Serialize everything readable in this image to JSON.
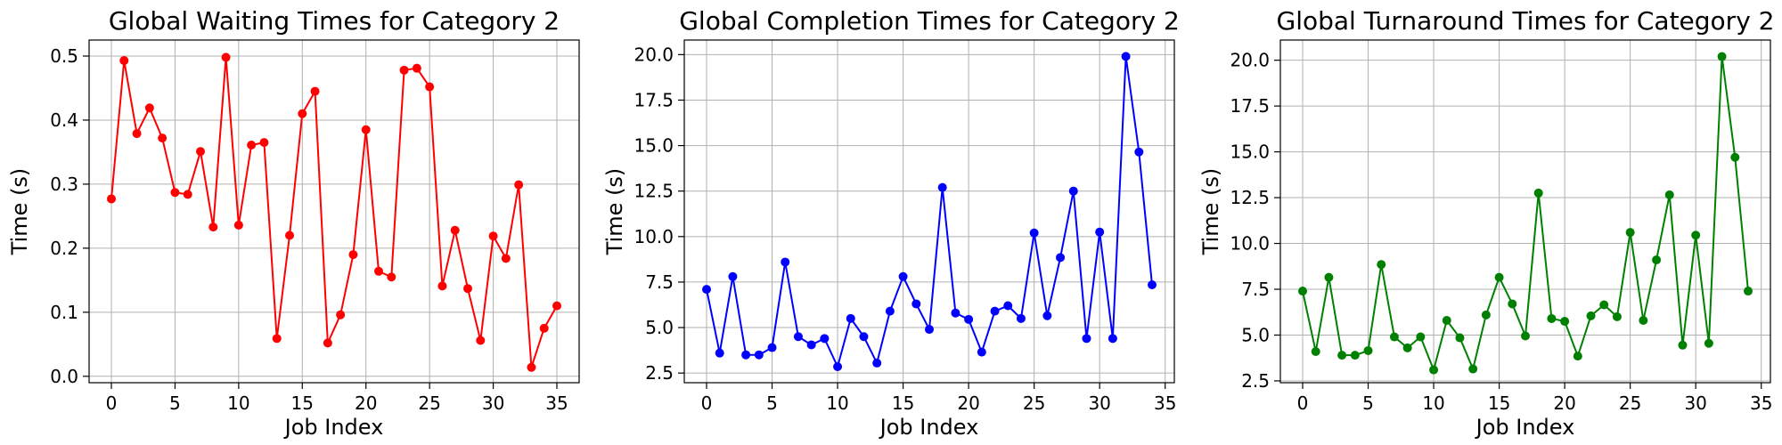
{
  "chart_data": [
    {
      "type": "line",
      "title": "Global Waiting Times for Category 2",
      "xlabel": "Job Index",
      "ylabel": "Time (s)",
      "color": "#ff0000",
      "grid": true,
      "xlim": [
        -1.75,
        36.75
      ],
      "ylim": [
        -0.01,
        0.525
      ],
      "xticks": [
        0,
        5,
        10,
        15,
        20,
        25,
        30,
        35
      ],
      "xtick_labels": [
        "0",
        "5",
        "10",
        "15",
        "20",
        "25",
        "30",
        "35"
      ],
      "yticks": [
        0.0,
        0.1,
        0.2,
        0.3,
        0.4,
        0.5
      ],
      "ytick_labels": [
        "0.0",
        "0.1",
        "0.2",
        "0.3",
        "0.4",
        "0.5"
      ],
      "series": [
        {
          "x": [
            0,
            1,
            2,
            3,
            4,
            5,
            6,
            7,
            8,
            9,
            10,
            11,
            12,
            13,
            14,
            15,
            16,
            17,
            18,
            19,
            20,
            21,
            22,
            23,
            24,
            25,
            26,
            27,
            28,
            29,
            30,
            31,
            32,
            33,
            34,
            35
          ],
          "values": [
            0.277,
            0.493,
            0.379,
            0.419,
            0.372,
            0.287,
            0.284,
            0.351,
            0.233,
            0.498,
            0.236,
            0.361,
            0.365,
            0.059,
            0.22,
            0.41,
            0.445,
            0.052,
            0.096,
            0.19,
            0.385,
            0.164,
            0.155,
            0.478,
            0.481,
            0.452,
            0.141,
            0.228,
            0.137,
            0.056,
            0.219,
            0.184,
            0.299,
            0.014,
            0.075,
            0.11
          ]
        }
      ]
    },
    {
      "type": "line",
      "title": "Global Completion Times for Category 2",
      "xlabel": "Job Index",
      "ylabel": "Time (s)",
      "color": "#0000ff",
      "grid": true,
      "xlim": [
        -1.7,
        35.7
      ],
      "ylim": [
        1.97,
        20.8
      ],
      "xticks": [
        0,
        5,
        10,
        15,
        20,
        25,
        30,
        35
      ],
      "xtick_labels": [
        "0",
        "5",
        "10",
        "15",
        "20",
        "25",
        "30",
        "35"
      ],
      "yticks": [
        2.5,
        5.0,
        7.5,
        10.0,
        12.5,
        15.0,
        17.5,
        20.0
      ],
      "ytick_labels": [
        "2.5",
        "5.0",
        "7.5",
        "10.0",
        "12.5",
        "15.0",
        "17.5",
        "20.0"
      ],
      "series": [
        {
          "x": [
            0,
            1,
            2,
            3,
            4,
            5,
            6,
            7,
            8,
            9,
            10,
            11,
            12,
            13,
            14,
            15,
            16,
            17,
            18,
            19,
            20,
            21,
            22,
            23,
            24,
            25,
            26,
            27,
            28,
            29,
            30,
            31,
            32,
            33,
            34
          ],
          "values": [
            7.1,
            3.6,
            7.8,
            3.5,
            3.5,
            3.9,
            8.6,
            4.5,
            4.05,
            4.4,
            2.85,
            5.5,
            4.5,
            3.05,
            5.9,
            7.8,
            6.3,
            4.9,
            12.7,
            5.8,
            5.45,
            3.65,
            5.9,
            6.2,
            5.5,
            10.2,
            5.65,
            8.85,
            12.5,
            4.4,
            10.25,
            4.4,
            19.9,
            14.65,
            7.35
          ]
        }
      ]
    },
    {
      "type": "line",
      "title": "Global Turnaround Times for Category 2",
      "xlabel": "Job Index",
      "ylabel": "Time (s)",
      "color": "#008000",
      "grid": true,
      "xlim": [
        -1.7,
        35.7
      ],
      "ylim": [
        2.4,
        21.1
      ],
      "xticks": [
        0,
        5,
        10,
        15,
        20,
        25,
        30,
        35
      ],
      "xtick_labels": [
        "0",
        "5",
        "10",
        "15",
        "20",
        "25",
        "30",
        "35"
      ],
      "yticks": [
        2.5,
        5.0,
        7.5,
        10.0,
        12.5,
        15.0,
        17.5,
        20.0
      ],
      "ytick_labels": [
        "2.5",
        "5.0",
        "7.5",
        "10.0",
        "12.5",
        "15.0",
        "17.5",
        "20.0"
      ],
      "series": [
        {
          "x": [
            0,
            1,
            2,
            3,
            4,
            5,
            6,
            7,
            8,
            9,
            10,
            11,
            12,
            13,
            14,
            15,
            16,
            17,
            18,
            19,
            20,
            21,
            22,
            23,
            24,
            25,
            26,
            27,
            28,
            29,
            30,
            31,
            32,
            33,
            34
          ],
          "values": [
            7.4,
            4.1,
            8.15,
            3.9,
            3.9,
            4.15,
            8.85,
            4.9,
            4.3,
            4.9,
            3.1,
            5.8,
            4.85,
            3.15,
            6.1,
            8.15,
            6.7,
            4.95,
            12.75,
            5.9,
            5.75,
            3.85,
            6.05,
            6.65,
            6.0,
            10.6,
            5.8,
            9.1,
            12.65,
            4.45,
            10.45,
            4.55,
            20.2,
            14.7,
            7.4
          ]
        }
      ]
    }
  ]
}
